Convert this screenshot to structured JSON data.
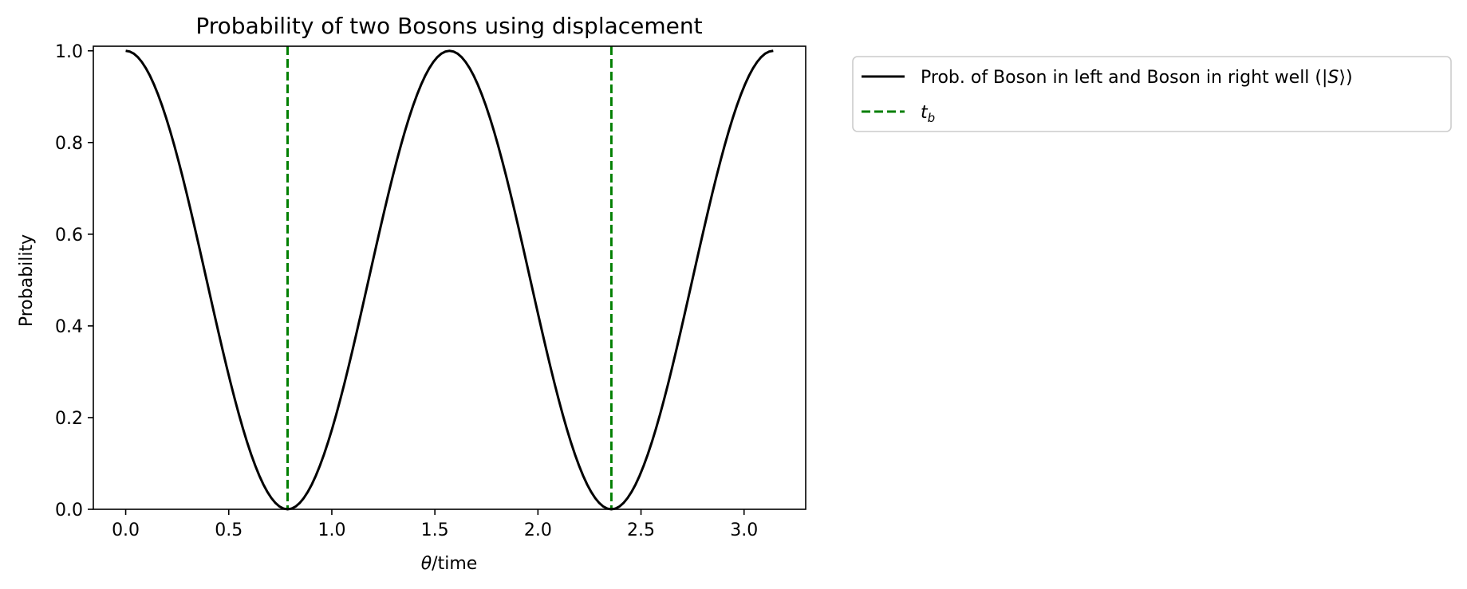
{
  "chart_data": {
    "type": "line",
    "title": "Probability of two Bosons using displacement",
    "xlabel_symbol": "θ",
    "xlabel_rest": "/time",
    "ylabel": "Probability",
    "xlim": [
      -0.157,
      3.299
    ],
    "ylim": [
      0,
      1.01
    ],
    "xticks": [
      0.0,
      0.5,
      1.0,
      1.5,
      2.0,
      2.5,
      3.0
    ],
    "xtick_labels": [
      "0.0",
      "0.5",
      "1.0",
      "1.5",
      "2.0",
      "2.5",
      "3.0"
    ],
    "yticks": [
      0.0,
      0.2,
      0.4,
      0.6,
      0.8,
      1.0
    ],
    "ytick_labels": [
      "0.0",
      "0.2",
      "0.4",
      "0.6",
      "0.8",
      "1.0"
    ],
    "grid": false,
    "legend_placement": "outside-upper-right",
    "series": [
      {
        "name_pre": "Prob. of Boson in left and Boson in right well (|",
        "name_math": "S",
        "name_post": "⟩)",
        "function": "cos^2(2θ)",
        "x_start": 0.0,
        "x_end": 3.14159,
        "color": "#000000",
        "style": "solid"
      }
    ],
    "vlines": {
      "name_main": "t",
      "name_sub": "b",
      "x": [
        0.7854,
        2.3562
      ],
      "color": "#007f00",
      "style": "dashed"
    }
  }
}
